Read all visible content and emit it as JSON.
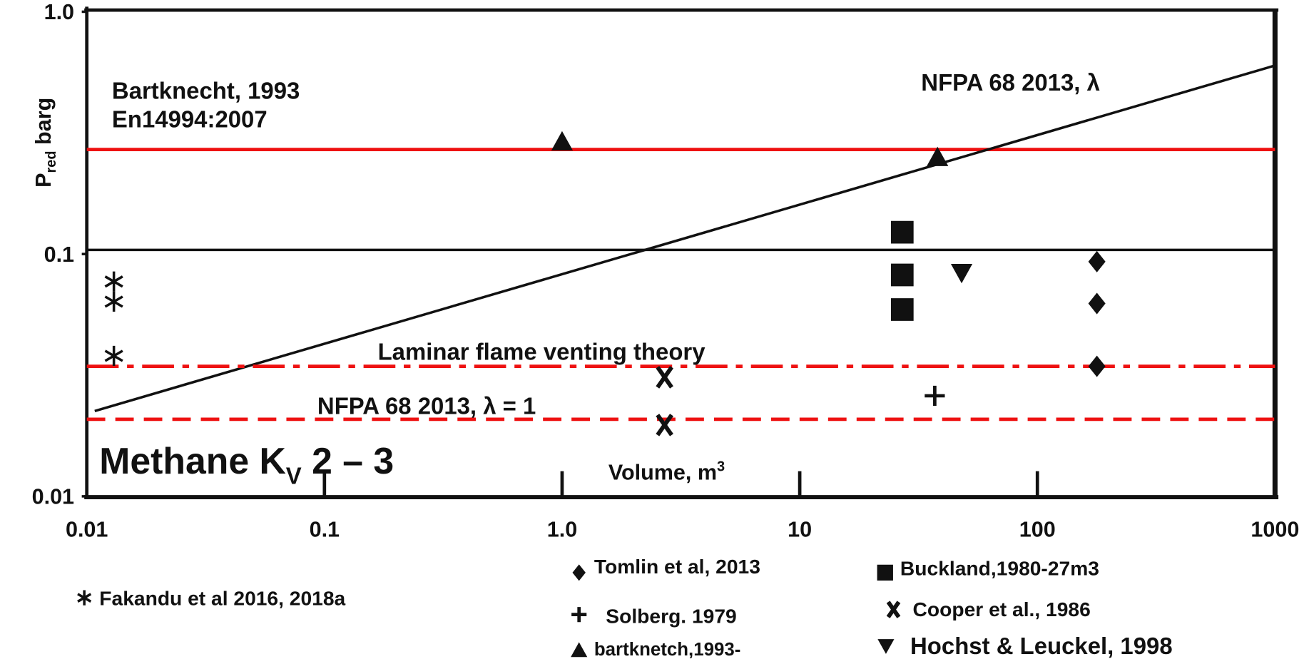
{
  "chart_data": {
    "type": "scatter",
    "xscale": "log",
    "yscale": "log",
    "xlim": [
      0.01,
      1000
    ],
    "ylim": [
      0.01,
      1
    ],
    "xticks": [
      0.01,
      0.1,
      {
        "value": 1,
        "label": "1.0"
      },
      10,
      100,
      1000
    ],
    "yticks": [
      0.01,
      0.1,
      {
        "value": 1,
        "label": "1.0"
      }
    ],
    "ylabel": {
      "main": "P",
      "sub": "red",
      "rest": " barg"
    },
    "title": {
      "main": "Methane K",
      "sub": "V",
      "rest": " 2 – 3"
    },
    "xlabel": {
      "main": "Volume, m",
      "sup": "3"
    },
    "series": [
      {
        "name": "Fakandu et al 2016, 2018a",
        "marker": "asterisk",
        "color": "#111111",
        "x": [
          0.013,
          0.013,
          0.013
        ],
        "values": [
          0.077,
          0.0636,
          0.038
        ]
      },
      {
        "name": "Tomlin et al, 2013",
        "marker": "diamond",
        "color": "#111111",
        "x": [
          178,
          178,
          178
        ],
        "values": [
          0.093,
          0.0625,
          0.0344
        ]
      },
      {
        "name": "Solberg. 1979",
        "marker": "plus",
        "color": "#111111",
        "x": [
          37
        ],
        "values": [
          0.026
        ]
      },
      {
        "name": "bartknetch,1993-",
        "marker": "triangle",
        "color": "#111111",
        "x": [
          1.0,
          38
        ],
        "values": [
          0.29,
          0.25
        ]
      },
      {
        "name": "Buckland,1980-27m3",
        "marker": "square",
        "color": "#111111",
        "x": [
          27,
          27,
          27
        ],
        "values": [
          0.123,
          0.082,
          0.059
        ]
      },
      {
        "name": "Cooper et al., 1986",
        "marker": "x",
        "color": "#111111",
        "x": [
          2.7,
          2.7
        ],
        "values": [
          0.031,
          0.0197
        ]
      },
      {
        "name": "Hochst & Leuckel, 1998",
        "marker": "triangle-down",
        "color": "#111111",
        "x": [
          48
        ],
        "values": [
          0.084
        ]
      }
    ],
    "lines": [
      {
        "label": [
          "Bartknecht, 1993",
          "En14994:2007"
        ],
        "color": "#ee1111",
        "dash": "solid",
        "x": [
          0.01,
          1000
        ],
        "values": [
          0.27,
          0.27
        ]
      },
      {
        "color": "#111111",
        "dash": "solid",
        "x": [
          0.01,
          1000
        ],
        "values": [
          0.104,
          0.104
        ]
      },
      {
        "label": [
          "NFPA 68 2013, λ"
        ],
        "color": "#111111",
        "dash": "solid",
        "x": [
          0.0108,
          1000
        ],
        "values": [
          0.0225,
          0.6
        ]
      },
      {
        "label": [
          "Laminar flame venting theory"
        ],
        "color": "#ee1111",
        "dash": "dashdot",
        "x": [
          0.01,
          1000
        ],
        "values": [
          0.0344,
          0.0344
        ]
      },
      {
        "label": [
          "NFPA 68 2013, λ = 1"
        ],
        "color": "#ee1111",
        "dash": "dashed",
        "x": [
          0.01,
          1000
        ],
        "values": [
          0.0208,
          0.0208
        ]
      }
    ]
  }
}
